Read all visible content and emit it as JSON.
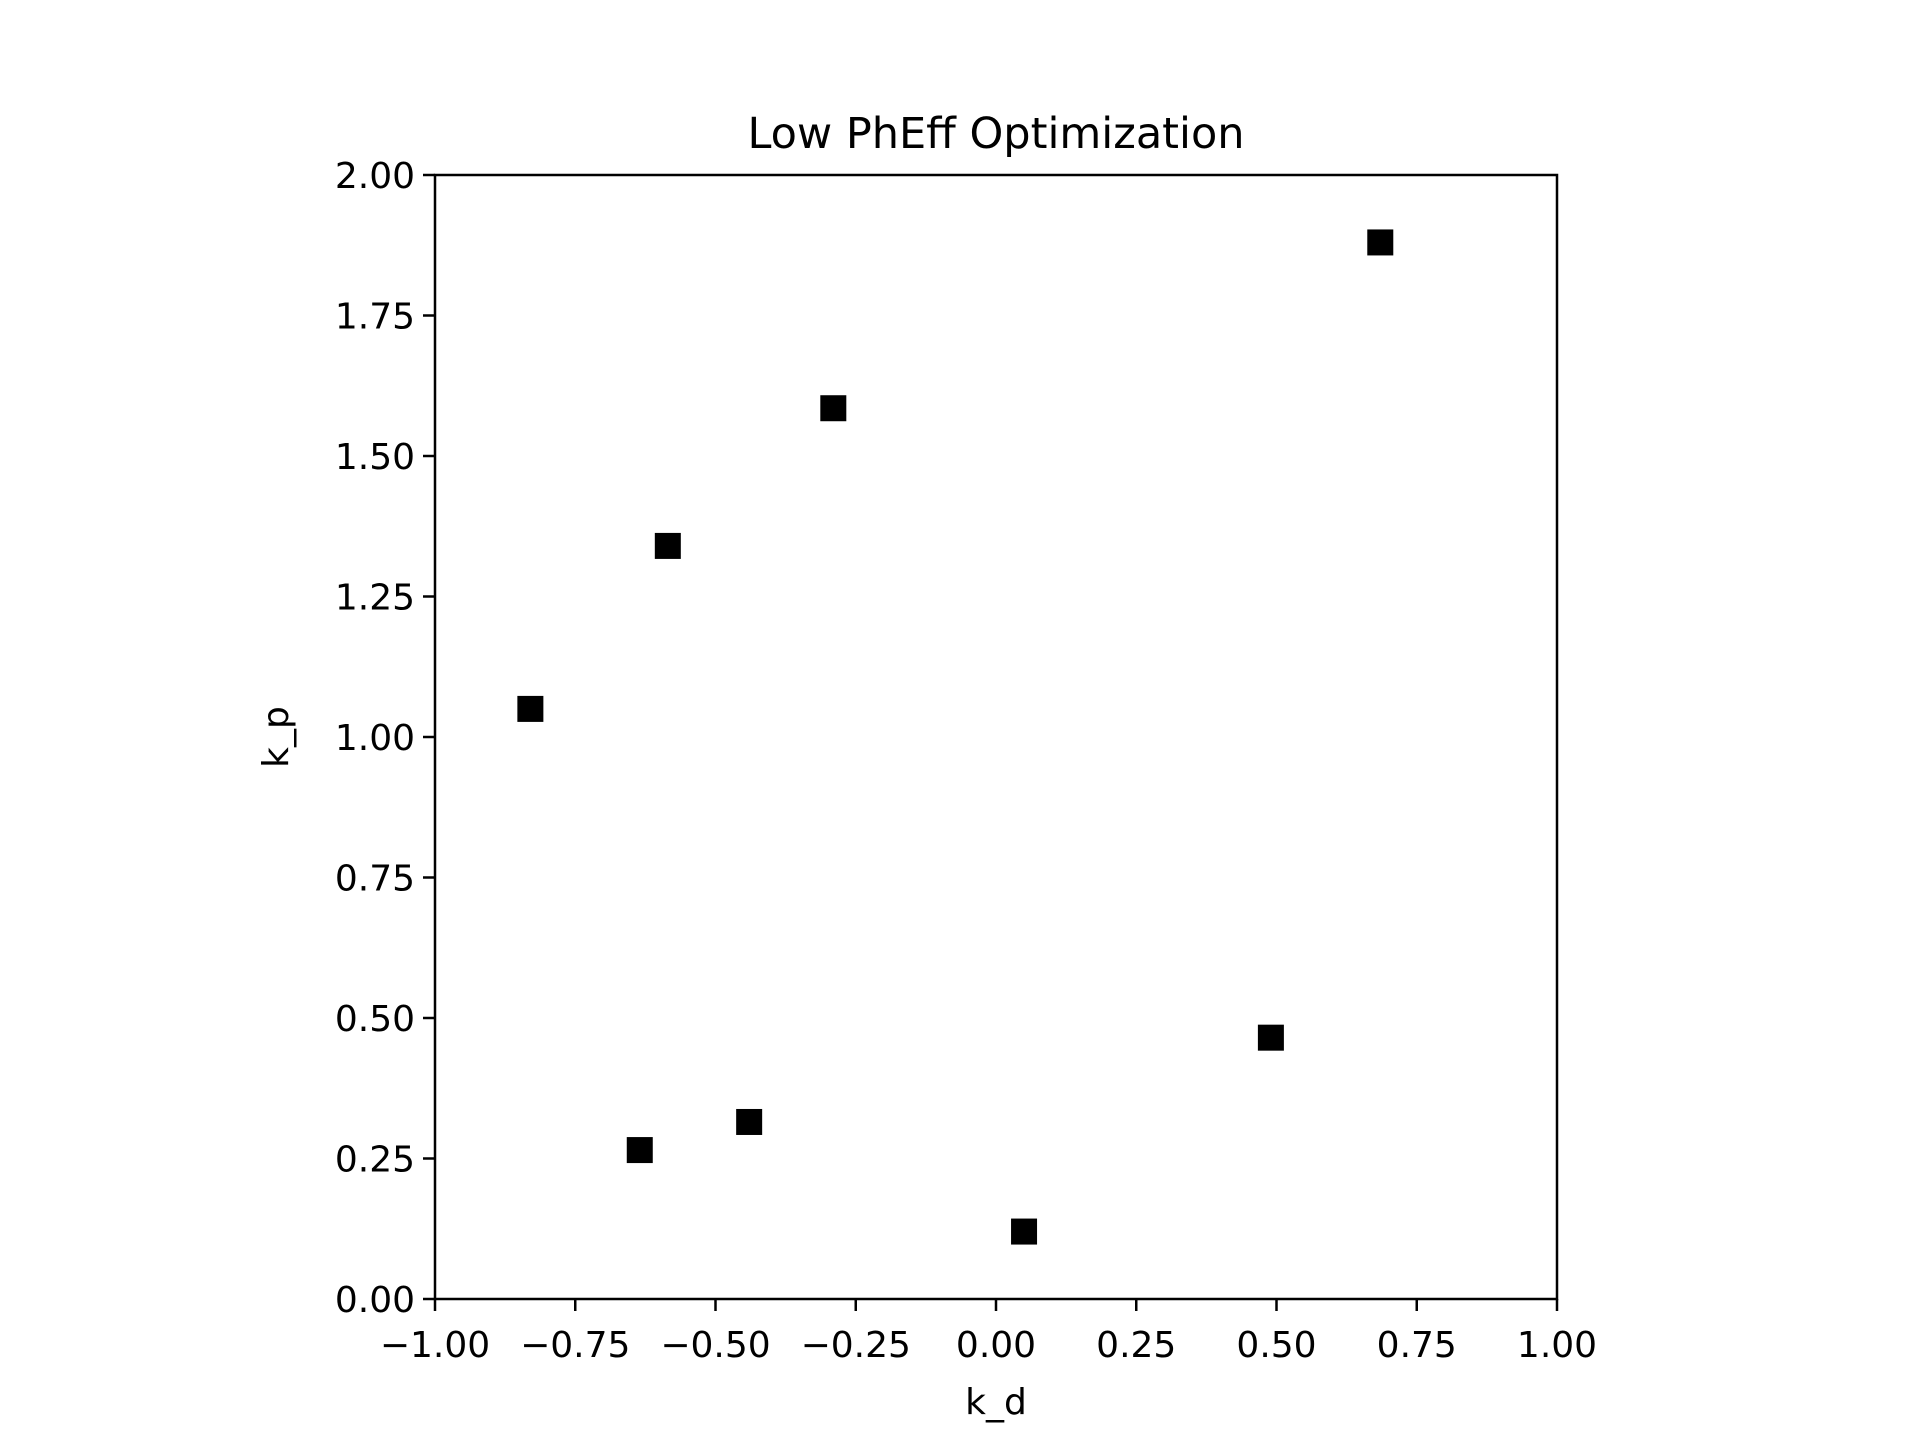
{
  "chart_data": {
    "type": "scatter",
    "title": "Low PhEff Optimization",
    "xlabel": "k_d",
    "ylabel": "k_p",
    "xlim": [
      -1.0,
      1.0
    ],
    "ylim": [
      0.0,
      2.0
    ],
    "xticks": [
      "−1.00",
      "−0.75",
      "−0.50",
      "−0.25",
      "0.00",
      "0.25",
      "0.50",
      "0.75",
      "1.00"
    ],
    "yticks": [
      "0.00",
      "0.25",
      "0.50",
      "0.75",
      "1.00",
      "1.25",
      "1.50",
      "1.75",
      "2.00"
    ],
    "grid": false,
    "marker": "square",
    "marker_color": "#000000",
    "points": [
      {
        "x": -0.83,
        "y": 1.05
      },
      {
        "x": -0.585,
        "y": 1.34
      },
      {
        "x": -0.29,
        "y": 1.585
      },
      {
        "x": 0.685,
        "y": 1.88
      },
      {
        "x": -0.635,
        "y": 0.265
      },
      {
        "x": -0.44,
        "y": 0.315
      },
      {
        "x": 0.05,
        "y": 0.12
      },
      {
        "x": 0.49,
        "y": 0.465
      }
    ]
  }
}
